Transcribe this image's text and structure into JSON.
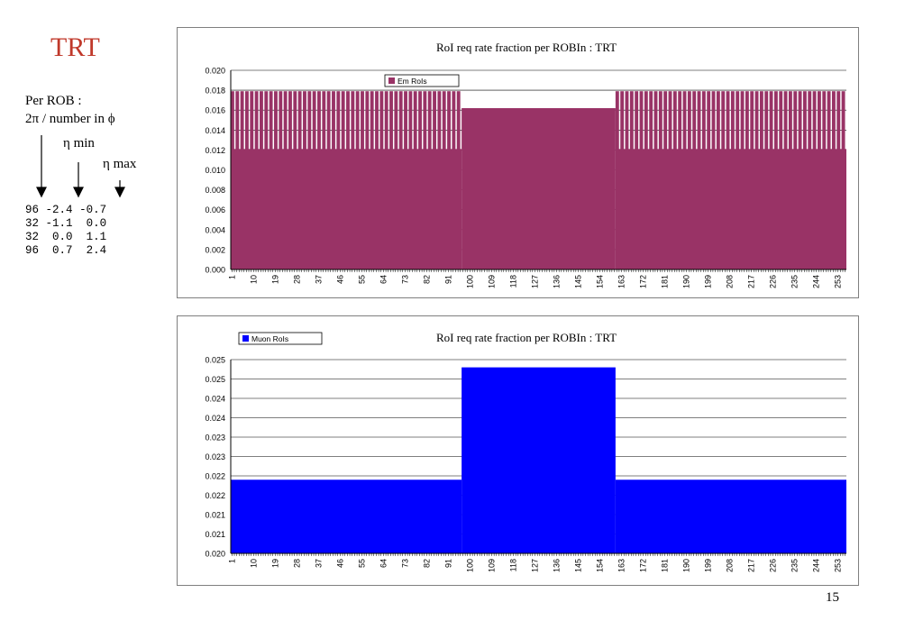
{
  "slide": {
    "title": "TRT",
    "note_line1": "Per ROB :",
    "note_line2": "2π / number in ϕ",
    "eta_min_label": "η min",
    "eta_max_label": "η max",
    "rows": [
      [
        "96",
        "-2.4",
        "-0.7"
      ],
      [
        "32",
        "-1.1",
        "0.0"
      ],
      [
        "32",
        "0.0",
        "1.1"
      ],
      [
        "96",
        "0.7",
        "2.4"
      ]
    ],
    "page_number": "15"
  },
  "chart_data": [
    {
      "type": "area",
      "title": "RoI req rate fraction per ROBIn : TRT",
      "legend": "Em RoIs",
      "legend_position": "top-left",
      "color": "#993366",
      "xlabel": "",
      "ylabel": "",
      "x_range": [
        1,
        256
      ],
      "ylim": [
        0.0,
        0.02
      ],
      "yticks": [
        "0.000",
        "0.002",
        "0.004",
        "0.006",
        "0.008",
        "0.010",
        "0.012",
        "0.014",
        "0.016",
        "0.018",
        "0.020"
      ],
      "xticks": [
        "1",
        "10",
        "19",
        "28",
        "37",
        "46",
        "55",
        "64",
        "73",
        "82",
        "91",
        "100",
        "109",
        "118",
        "127",
        "136",
        "145",
        "154",
        "163",
        "172",
        "181",
        "190",
        "199",
        "208",
        "217",
        "226",
        "235",
        "244",
        "253"
      ],
      "grid": true,
      "segments": [
        {
          "x_start": 1,
          "x_end": 96,
          "peak": 0.0179,
          "trough": 0.0121
        },
        {
          "x_start": 97,
          "x_end": 160,
          "value": 0.0162
        },
        {
          "x_start": 161,
          "x_end": 256,
          "peak": 0.0179,
          "trough": 0.0121
        }
      ]
    },
    {
      "type": "area",
      "title": "RoI req rate fraction per ROBIn : TRT",
      "legend": "Muon RoIs",
      "legend_position": "top-left",
      "color": "#0000ff",
      "xlabel": "",
      "ylabel": "",
      "x_range": [
        1,
        256
      ],
      "ylim": [
        0.02,
        0.025
      ],
      "yticks": [
        "0.020",
        "0.021",
        "0.021",
        "0.022",
        "0.022",
        "0.023",
        "0.023",
        "0.024",
        "0.024",
        "0.025",
        "0.025"
      ],
      "xticks": [
        "1",
        "10",
        "19",
        "28",
        "37",
        "46",
        "55",
        "64",
        "73",
        "82",
        "91",
        "100",
        "109",
        "118",
        "127",
        "136",
        "145",
        "154",
        "163",
        "172",
        "181",
        "190",
        "199",
        "208",
        "217",
        "226",
        "235",
        "244",
        "253"
      ],
      "grid": true,
      "segments": [
        {
          "x_start": 1,
          "x_end": 96,
          "value": 0.0219
        },
        {
          "x_start": 97,
          "x_end": 160,
          "value": 0.0248
        },
        {
          "x_start": 161,
          "x_end": 256,
          "value": 0.0219
        }
      ]
    }
  ]
}
